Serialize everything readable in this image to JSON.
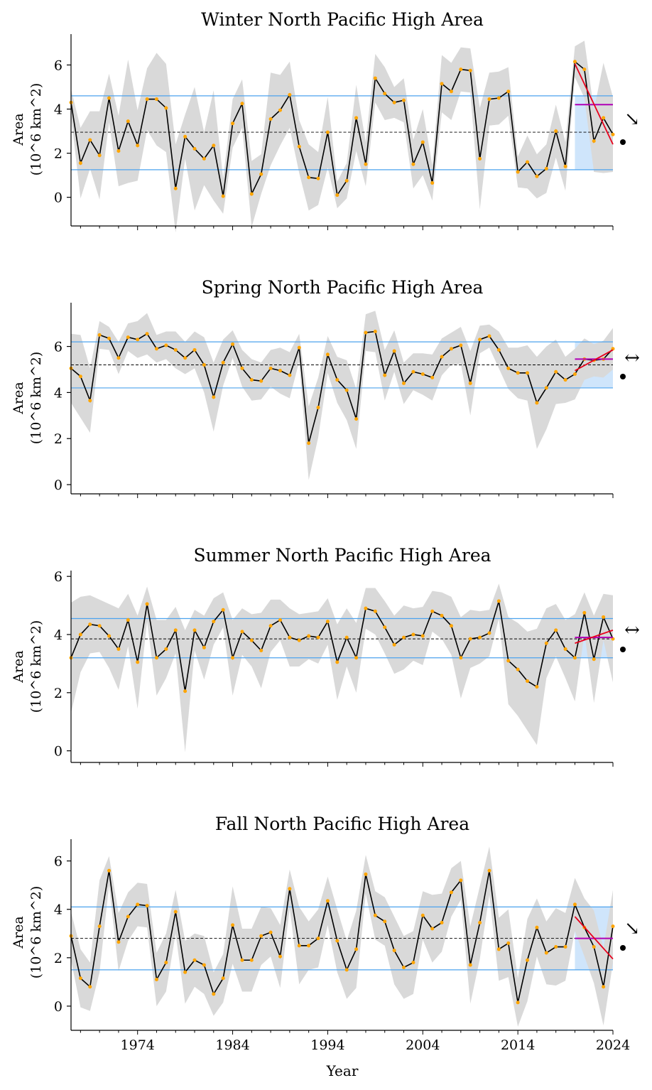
{
  "x_axis_label": "Year",
  "x_tick_labels": [
    "1974",
    "1984",
    "1994",
    "2004",
    "2014",
    "2024"
  ],
  "y_axis_label_line1": "Area",
  "y_axis_label_line2": "(10^6 km^2)",
  "colors": {
    "line": "#000000",
    "point": "#ffa500",
    "band": "#d9d9d9",
    "sd_line": "#4da3ee",
    "recent_shade": "#cfe5fb",
    "trend": "#e8001c",
    "recent_mean": "#b000b5",
    "mean_line": "#000000"
  },
  "chart_data": [
    {
      "type": "line",
      "title": "Winter North Pacific High Area",
      "xlabel": "",
      "ylabel": "Area (10^6 km^2)",
      "x_start": 1967,
      "x_end": 2024,
      "ylim": [
        -1.3,
        7.4
      ],
      "y_ticks": [
        0,
        2,
        4,
        6
      ],
      "values": [
        4.3,
        1.55,
        2.6,
        1.9,
        4.5,
        2.1,
        3.45,
        2.35,
        4.45,
        4.45,
        4.05,
        0.4,
        2.75,
        2.2,
        1.75,
        2.35,
        0.05,
        3.35,
        4.25,
        0.15,
        1.05,
        3.55,
        3.95,
        4.65,
        2.3,
        0.9,
        0.85,
        2.95,
        0.1,
        0.75,
        3.6,
        1.5,
        5.4,
        4.7,
        4.3,
        4.4,
        1.5,
        2.5,
        0.65,
        5.15,
        4.8,
        5.8,
        5.75,
        1.75,
        4.45,
        4.5,
        4.8,
        1.15,
        1.6,
        0.95,
        1.3,
        3.0,
        1.4,
        6.15,
        5.8,
        2.55,
        3.6,
        2.85
      ],
      "band_half_width": [
        0.6,
        1.6,
        1.3,
        2.0,
        1.1,
        1.6,
        2.8,
        1.6,
        1.4,
        2.1,
        2.0,
        2.0,
        1.0,
        2.8,
        1.2,
        2.5,
        0.8,
        1.1,
        1.1,
        1.5,
        0.9,
        2.1,
        1.6,
        1.5,
        1.2,
        1.5,
        1.2,
        1.6,
        0.6,
        0.8,
        1.5,
        1.0,
        1.1,
        1.2,
        0.7,
        1.0,
        1.1,
        1.5,
        0.8,
        1.3,
        1.3,
        1.0,
        1.0,
        2.3,
        1.2,
        1.2,
        1.1,
        0.7,
        1.2,
        1.0,
        1.1,
        1.2,
        1.1,
        0.7,
        1.3,
        1.4,
        2.5,
        1.7
      ],
      "mean": 2.95,
      "sd_upper": 4.6,
      "sd_lower": 1.25,
      "recent_window": [
        2020,
        2024
      ],
      "recent_mean": 4.2,
      "trend": {
        "x0": 2020,
        "y0": 6.05,
        "x1": 2024,
        "y1": 2.4
      },
      "trend_symbol": "↘",
      "mean_symbol": "●"
    },
    {
      "type": "line",
      "title": "Spring North Pacific High Area",
      "xlabel": "",
      "ylabel": "Area (10^6 km^2)",
      "x_start": 1967,
      "x_end": 2024,
      "ylim": [
        -0.4,
        7.9
      ],
      "y_ticks": [
        0,
        2,
        4,
        6
      ],
      "values": [
        5.05,
        4.7,
        3.65,
        6.5,
        6.35,
        5.5,
        6.4,
        6.3,
        6.55,
        5.9,
        6.05,
        5.85,
        5.5,
        5.85,
        5.2,
        3.8,
        5.3,
        6.1,
        5.05,
        4.55,
        4.5,
        5.05,
        4.95,
        4.75,
        5.95,
        1.8,
        3.35,
        5.65,
        4.55,
        4.1,
        2.85,
        6.6,
        6.65,
        4.75,
        5.8,
        4.4,
        4.9,
        4.8,
        4.65,
        5.55,
        5.9,
        6.05,
        4.4,
        6.3,
        6.45,
        5.85,
        5.05,
        4.85,
        4.85,
        3.55,
        4.2,
        4.9,
        4.55,
        4.8,
        5.45,
        5.4,
        5.45,
        5.9
      ],
      "band_half_width": [
        1.5,
        1.8,
        1.4,
        0.6,
        0.5,
        0.7,
        0.6,
        0.8,
        0.9,
        0.6,
        0.6,
        0.8,
        0.7,
        0.8,
        1.2,
        1.5,
        1.0,
        0.6,
        0.8,
        0.9,
        0.8,
        0.8,
        1.0,
        1.0,
        0.6,
        1.6,
        1.3,
        0.8,
        1.0,
        1.3,
        1.3,
        0.8,
        0.9,
        1.1,
        0.9,
        0.9,
        0.8,
        0.9,
        1.0,
        0.8,
        0.7,
        0.8,
        1.4,
        0.6,
        0.5,
        0.8,
        0.9,
        1.1,
        1.2,
        2.0,
        1.8,
        1.4,
        1.0,
        1.1,
        0.9,
        0.7,
        0.8,
        0.9
      ],
      "mean": 5.2,
      "sd_upper": 6.2,
      "sd_lower": 4.2,
      "recent_window": [
        2020,
        2024
      ],
      "recent_mean": 5.45,
      "trend": {
        "x0": 2020,
        "y0": 4.95,
        "x1": 2024,
        "y1": 5.85
      },
      "trend_symbol": "↔",
      "mean_symbol": "●"
    },
    {
      "type": "line",
      "title": "Summer North Pacific High Area",
      "xlabel": "",
      "ylabel": "Area (10^6 km^2)",
      "x_start": 1967,
      "x_end": 2024,
      "ylim": [
        -0.4,
        6.2
      ],
      "y_ticks": [
        0,
        2,
        4,
        6
      ],
      "values": [
        3.2,
        4.0,
        4.35,
        4.3,
        3.95,
        3.5,
        4.5,
        3.05,
        5.05,
        3.2,
        3.5,
        4.15,
        2.05,
        4.15,
        3.55,
        4.45,
        4.85,
        3.2,
        4.1,
        3.8,
        3.45,
        4.3,
        4.5,
        3.9,
        3.8,
        3.95,
        3.9,
        4.45,
        3.05,
        3.9,
        3.2,
        4.9,
        4.8,
        4.25,
        3.65,
        3.9,
        4.0,
        3.95,
        4.8,
        4.65,
        4.3,
        3.2,
        3.85,
        3.9,
        4.05,
        5.15,
        3.1,
        2.8,
        2.4,
        2.2,
        3.7,
        4.15,
        3.5,
        3.2,
        4.75,
        3.15,
        4.6,
        3.85
      ],
      "band_half_width": [
        1.9,
        1.3,
        1.0,
        0.9,
        1.1,
        1.4,
        0.9,
        1.6,
        0.6,
        1.3,
        1.0,
        0.8,
        2.1,
        0.7,
        1.1,
        0.8,
        0.6,
        1.3,
        0.8,
        0.9,
        1.3,
        0.9,
        0.7,
        1.0,
        0.9,
        0.8,
        0.9,
        0.8,
        1.3,
        1.0,
        1.2,
        0.7,
        0.8,
        0.9,
        1.0,
        1.1,
        0.9,
        1.0,
        0.7,
        0.8,
        1.0,
        1.4,
        1.0,
        0.9,
        0.8,
        0.6,
        1.5,
        1.6,
        1.7,
        2.0,
        1.2,
        0.9,
        1.0,
        1.5,
        0.7,
        1.5,
        0.8,
        1.5
      ],
      "mean": 3.85,
      "sd_upper": 4.55,
      "sd_lower": 3.2,
      "recent_window": [
        2020,
        2024
      ],
      "recent_mean": 3.9,
      "trend": {
        "x0": 2020,
        "y0": 3.7,
        "x1": 2024,
        "y1": 4.15
      },
      "trend_symbol": "↔",
      "mean_symbol": "●"
    },
    {
      "type": "line",
      "title": "Fall North Pacific High Area",
      "xlabel": "Year",
      "ylabel": "Area (10^6 km^2)",
      "x_start": 1967,
      "x_end": 2024,
      "ylim": [
        -1.0,
        6.9
      ],
      "y_ticks": [
        0,
        2,
        4,
        6
      ],
      "values": [
        2.9,
        1.15,
        0.8,
        3.3,
        5.6,
        2.65,
        3.7,
        4.2,
        4.15,
        1.1,
        1.8,
        3.9,
        1.4,
        1.9,
        1.7,
        0.5,
        1.15,
        3.35,
        1.9,
        1.9,
        2.9,
        3.05,
        2.05,
        4.85,
        2.5,
        2.5,
        2.8,
        4.35,
        2.7,
        1.5,
        2.35,
        5.45,
        3.75,
        3.5,
        2.3,
        1.6,
        1.8,
        3.75,
        3.2,
        3.45,
        4.7,
        5.2,
        1.7,
        3.45,
        5.6,
        2.35,
        2.6,
        0.15,
        1.9,
        3.25,
        2.2,
        2.45,
        2.45,
        4.2,
        3.25,
        2.45,
        0.8,
        3.3
      ],
      "band_half_width": [
        1.0,
        1.2,
        1.0,
        1.9,
        0.6,
        1.2,
        1.0,
        0.9,
        0.9,
        1.1,
        1.2,
        0.9,
        1.3,
        1.1,
        1.2,
        0.9,
        1.0,
        1.6,
        1.3,
        1.3,
        1.2,
        1.0,
        1.3,
        0.8,
        1.6,
        1.0,
        1.2,
        1.0,
        1.3,
        1.2,
        1.6,
        0.8,
        1.0,
        1.0,
        1.4,
        1.3,
        1.3,
        1.0,
        1.4,
        1.2,
        1.0,
        0.8,
        1.6,
        1.5,
        1.0,
        1.3,
        1.4,
        1.0,
        1.7,
        1.2,
        1.3,
        1.6,
        1.4,
        1.1,
        1.2,
        1.5,
        1.6,
        1.5
      ],
      "mean": 2.8,
      "sd_upper": 4.1,
      "sd_lower": 1.5,
      "recent_window": [
        2020,
        2024
      ],
      "recent_mean": 2.8,
      "trend": {
        "x0": 2020,
        "y0": 3.7,
        "x1": 2024,
        "y1": 1.95
      },
      "trend_symbol": "↘",
      "mean_symbol": "●"
    }
  ]
}
